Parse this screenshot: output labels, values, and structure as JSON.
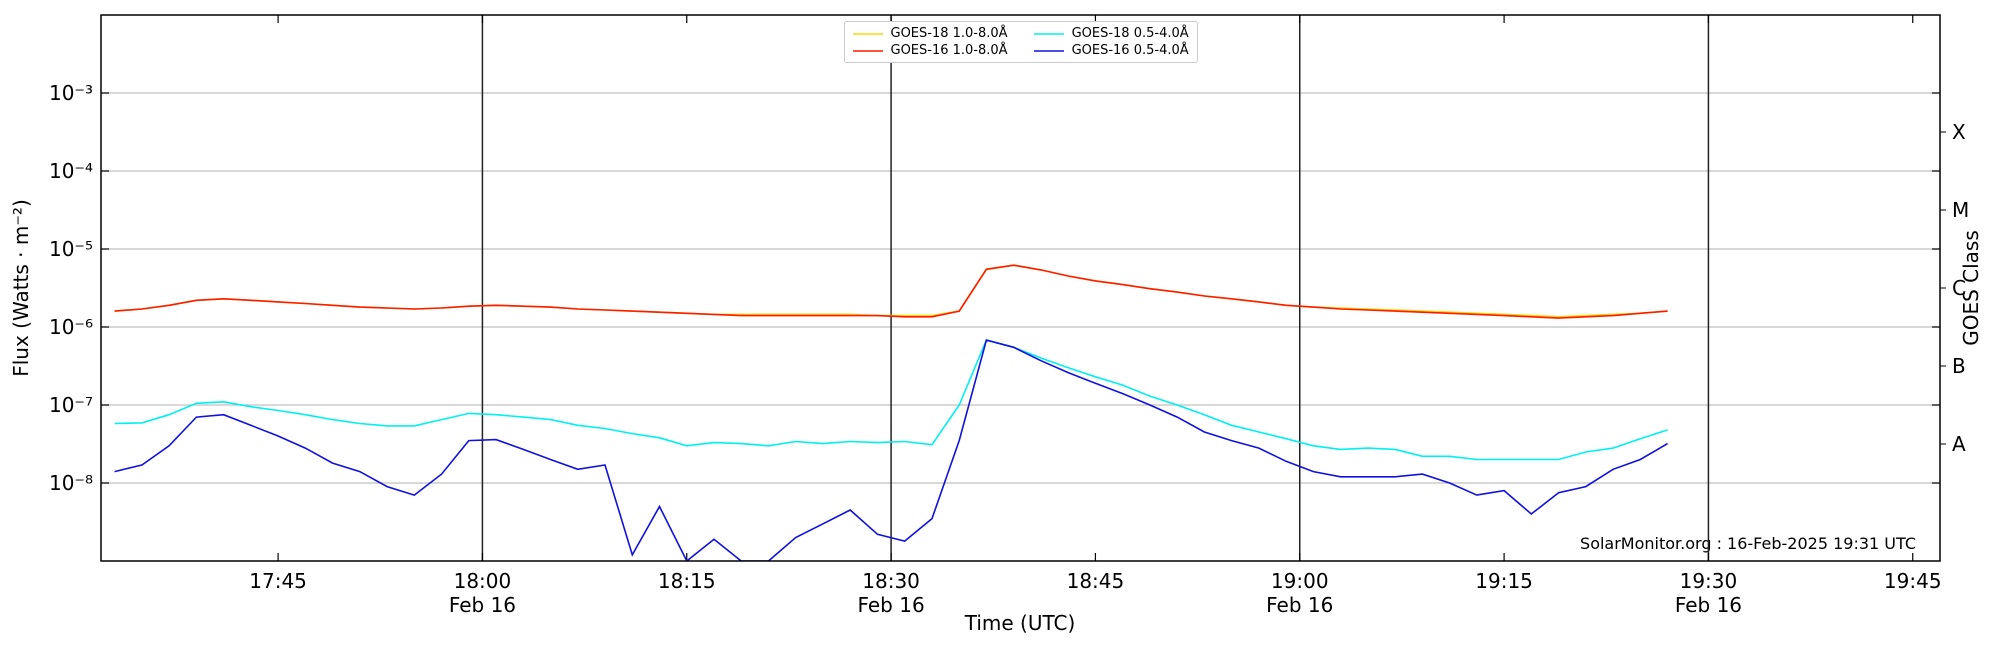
{
  "chart_data": {
    "type": "line",
    "x_label": "Time (UTC)",
    "y_label": "Flux (Watts · m⁻²)",
    "y2_label": "GOES Class",
    "annotation": "SolarMonitor.org : 16-Feb-2025 19:31 UTC",
    "yscale": "log",
    "grid": true,
    "legend": "upper center",
    "xlim": [
      "17:32",
      "19:47"
    ],
    "xticks": [
      "17:45",
      {
        "value": "18:00",
        "label": "18:00\nFeb 16"
      },
      "18:15",
      {
        "value": "18:30",
        "label": "18:30\nFeb 16"
      },
      "18:45",
      {
        "value": "19:00",
        "label": "19:00\nFeb 16"
      },
      "19:15",
      {
        "value": "19:30",
        "label": "19:30\nFeb 16"
      },
      "19:45"
    ],
    "ylim": [
      1e-09,
      0.01
    ],
    "yticks": [
      {
        "value": 1e-08,
        "label": "10⁻⁸"
      },
      {
        "value": 1e-07,
        "label": "10⁻⁷"
      },
      {
        "value": 1e-06,
        "label": "10⁻⁶"
      },
      {
        "value": 1e-05,
        "label": "10⁻⁵"
      },
      {
        "value": 0.0001,
        "label": "10⁻⁴"
      },
      {
        "value": 0.001,
        "label": "10⁻³"
      }
    ],
    "y2lim": [
      1e-09,
      0.01
    ],
    "y2ticks": [
      {
        "value": 3.162e-08,
        "label": "A"
      },
      {
        "value": 3.162e-07,
        "label": "B"
      },
      {
        "value": 3.162e-06,
        "label": "C"
      },
      {
        "value": 3.162e-05,
        "label": "M"
      },
      {
        "value": 0.0003162,
        "label": "X"
      }
    ],
    "x": [
      "17:33",
      "17:35",
      "17:37",
      "17:39",
      "17:41",
      "17:43",
      "17:45",
      "17:47",
      "17:49",
      "17:51",
      "17:53",
      "17:55",
      "17:57",
      "17:59",
      "18:01",
      "18:03",
      "18:05",
      "18:07",
      "18:09",
      "18:11",
      "18:13",
      "18:15",
      "18:17",
      "18:19",
      "18:21",
      "18:23",
      "18:25",
      "18:27",
      "18:29",
      "18:31",
      "18:33",
      "18:35",
      "18:37",
      "18:39",
      "18:41",
      "18:43",
      "18:45",
      "18:47",
      "18:49",
      "18:51",
      "18:53",
      "18:55",
      "18:57",
      "18:59",
      "19:01",
      "19:03",
      "19:05",
      "19:07",
      "19:09",
      "19:11",
      "19:13",
      "19:15",
      "19:17",
      "19:19",
      "19:21",
      "19:23",
      "19:25",
      "19:27"
    ],
    "series": [
      {
        "name": "GOES-18 1.0-8.0Å",
        "color": "#ffd700",
        "values": [
          1.6e-06,
          1.7e-06,
          1.9e-06,
          2.2e-06,
          2.3e-06,
          2.2e-06,
          2.1e-06,
          2e-06,
          1.9e-06,
          1.8e-06,
          1.75e-06,
          1.7e-06,
          1.75e-06,
          1.85e-06,
          1.9e-06,
          1.85e-06,
          1.8e-06,
          1.7e-06,
          1.65e-06,
          1.6e-06,
          1.55e-06,
          1.5e-06,
          1.45e-06,
          1.45e-06,
          1.45e-06,
          1.45e-06,
          1.45e-06,
          1.45e-06,
          1.4e-06,
          1.4e-06,
          1.4e-06,
          1.6e-06,
          5.5e-06,
          6.2e-06,
          5.4e-06,
          4.5e-06,
          3.9e-06,
          3.5e-06,
          3.1e-06,
          2.8e-06,
          2.5e-06,
          2.3e-06,
          2.1e-06,
          1.9e-06,
          1.8e-06,
          1.75e-06,
          1.7e-06,
          1.65e-06,
          1.6e-06,
          1.55e-06,
          1.5e-06,
          1.45e-06,
          1.4e-06,
          1.35e-06,
          1.4e-06,
          1.45e-06,
          1.5e-06,
          1.6e-06
        ]
      },
      {
        "name": "GOES-16 1.0-8.0Å",
        "color": "#ff1a00",
        "values": [
          1.6e-06,
          1.7e-06,
          1.9e-06,
          2.2e-06,
          2.3e-06,
          2.2e-06,
          2.1e-06,
          2e-06,
          1.9e-06,
          1.8e-06,
          1.75e-06,
          1.7e-06,
          1.75e-06,
          1.85e-06,
          1.9e-06,
          1.85e-06,
          1.8e-06,
          1.7e-06,
          1.65e-06,
          1.6e-06,
          1.55e-06,
          1.5e-06,
          1.45e-06,
          1.4e-06,
          1.4e-06,
          1.4e-06,
          1.4e-06,
          1.4e-06,
          1.4e-06,
          1.35e-06,
          1.35e-06,
          1.6e-06,
          5.5e-06,
          6.2e-06,
          5.4e-06,
          4.5e-06,
          3.9e-06,
          3.5e-06,
          3.1e-06,
          2.8e-06,
          2.5e-06,
          2.3e-06,
          2.1e-06,
          1.9e-06,
          1.8e-06,
          1.7e-06,
          1.65e-06,
          1.6e-06,
          1.55e-06,
          1.5e-06,
          1.45e-06,
          1.4e-06,
          1.35e-06,
          1.3e-06,
          1.35e-06,
          1.4e-06,
          1.5e-06,
          1.6e-06
        ]
      },
      {
        "name": "GOES-18 0.5-4.0Å",
        "color": "#00f0f0",
        "values": [
          5.8e-08,
          5.9e-08,
          7.5e-08,
          1.05e-07,
          1.1e-07,
          9.5e-08,
          8.5e-08,
          7.5e-08,
          6.5e-08,
          5.8e-08,
          5.4e-08,
          5.4e-08,
          6.5e-08,
          7.8e-08,
          7.5e-08,
          7e-08,
          6.5e-08,
          5.5e-08,
          5e-08,
          4.3e-08,
          3.8e-08,
          3e-08,
          3.3e-08,
          3.2e-08,
          3e-08,
          3.4e-08,
          3.2e-08,
          3.4e-08,
          3.3e-08,
          3.4e-08,
          3.1e-08,
          1e-07,
          6.8e-07,
          5.5e-07,
          4e-07,
          3e-07,
          2.3e-07,
          1.8e-07,
          1.3e-07,
          1e-07,
          7.5e-08,
          5.5e-08,
          4.5e-08,
          3.7e-08,
          3e-08,
          2.7e-08,
          2.8e-08,
          2.7e-08,
          2.2e-08,
          2.2e-08,
          2e-08,
          2e-08,
          2e-08,
          2e-08,
          2.5e-08,
          2.8e-08,
          3.7e-08,
          4.8e-08
        ]
      },
      {
        "name": "GOES-16 0.5-4.0Å",
        "color": "#1010e0",
        "values": [
          1.4e-08,
          1.7e-08,
          3e-08,
          7e-08,
          7.5e-08,
          5.5e-08,
          4e-08,
          2.8e-08,
          1.8e-08,
          1.4e-08,
          9e-09,
          7e-09,
          1.3e-08,
          3.5e-08,
          3.6e-08,
          2.7e-08,
          2e-08,
          1.5e-08,
          1.7e-08,
          1.2e-09,
          5e-09,
          1e-09,
          1.9e-09,
          1e-09,
          1e-09,
          2e-09,
          3e-09,
          4.5e-09,
          2.2e-09,
          1.8e-09,
          3.5e-09,
          3.5e-08,
          6.8e-07,
          5.5e-07,
          3.7e-07,
          2.6e-07,
          1.9e-07,
          1.4e-07,
          1e-07,
          7e-08,
          4.5e-08,
          3.5e-08,
          2.8e-08,
          1.9e-08,
          1.4e-08,
          1.2e-08,
          1.2e-08,
          1.2e-08,
          1.3e-08,
          1e-08,
          7e-09,
          8e-09,
          4e-09,
          7.5e-09,
          9e-09,
          1.5e-08,
          2e-08,
          3.2e-08
        ]
      }
    ]
  }
}
